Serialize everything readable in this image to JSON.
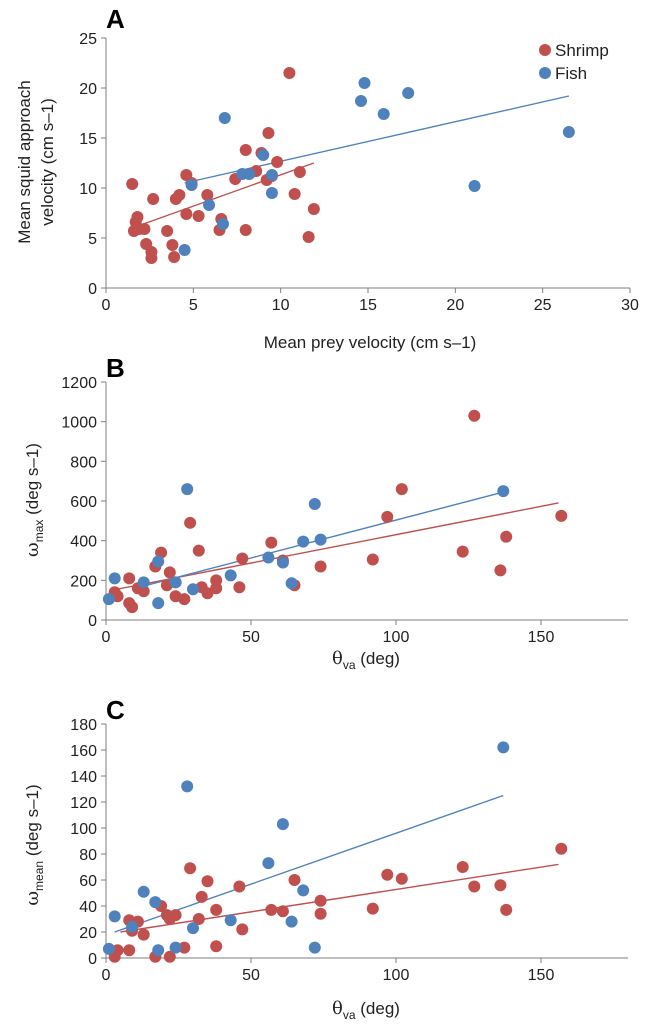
{
  "colors": {
    "shrimp": "#c0504d",
    "fish": "#4f81bd",
    "axis": "#7f7f7f"
  },
  "legend": {
    "shrimp": "Shrimp",
    "fish": "Fish",
    "placement": "top-right"
  },
  "chart_data": [
    {
      "panel": "A",
      "type": "scatter",
      "xlabel": "Mean prey velocity (cm s–1)",
      "ylabel_line1": "Mean squid approach",
      "ylabel_line2": "velocity (cm s–1)",
      "xlim": [
        0,
        30
      ],
      "ylim": [
        0,
        25
      ],
      "xticks": [
        "0",
        "5",
        "10",
        "15",
        "20",
        "25",
        "30"
      ],
      "yticks": [
        "0",
        "5",
        "10",
        "15",
        "20",
        "25"
      ],
      "grid": false,
      "series": [
        {
          "name": "Shrimp",
          "points": [
            [
              1.5,
              10.4
            ],
            [
              1.6,
              5.7
            ],
            [
              1.7,
              6.6
            ],
            [
              1.8,
              7.1
            ],
            [
              1.9,
              5.9
            ],
            [
              2.2,
              5.9
            ],
            [
              2.3,
              4.4
            ],
            [
              2.6,
              3.0
            ],
            [
              2.6,
              3.6
            ],
            [
              2.7,
              8.9
            ],
            [
              3.5,
              5.7
            ],
            [
              3.8,
              4.3
            ],
            [
              3.9,
              3.1
            ],
            [
              4.0,
              8.9
            ],
            [
              4.2,
              9.3
            ],
            [
              4.6,
              11.3
            ],
            [
              4.6,
              7.4
            ],
            [
              4.9,
              10.5
            ],
            [
              5.3,
              7.2
            ],
            [
              5.8,
              9.3
            ],
            [
              6.5,
              5.8
            ],
            [
              6.6,
              6.9
            ],
            [
              7.4,
              10.9
            ],
            [
              8.0,
              13.8
            ],
            [
              8.0,
              5.8
            ],
            [
              8.6,
              11.7
            ],
            [
              8.9,
              13.5
            ],
            [
              9.2,
              10.8
            ],
            [
              9.3,
              15.5
            ],
            [
              9.5,
              11.2
            ],
            [
              9.8,
              12.6
            ],
            [
              10.5,
              21.5
            ],
            [
              10.8,
              9.4
            ],
            [
              11.1,
              11.6
            ],
            [
              11.6,
              5.1
            ],
            [
              11.9,
              7.9
            ]
          ],
          "trend": [
            [
              1.5,
              6.0
            ],
            [
              11.9,
              12.5
            ]
          ]
        },
        {
          "name": "Fish",
          "points": [
            [
              4.5,
              3.8
            ],
            [
              4.9,
              10.3
            ],
            [
              5.9,
              8.3
            ],
            [
              6.7,
              6.4
            ],
            [
              6.8,
              17.0
            ],
            [
              7.8,
              11.4
            ],
            [
              8.2,
              11.4
            ],
            [
              9.0,
              13.3
            ],
            [
              9.5,
              9.5
            ],
            [
              9.5,
              11.3
            ],
            [
              14.6,
              18.7
            ],
            [
              14.8,
              20.5
            ],
            [
              15.9,
              17.4
            ],
            [
              17.3,
              19.5
            ],
            [
              21.1,
              10.2
            ],
            [
              26.5,
              15.6
            ]
          ],
          "trend": [
            [
              4.5,
              10.5
            ],
            [
              26.5,
              19.2
            ]
          ]
        }
      ]
    },
    {
      "panel": "B",
      "type": "scatter",
      "xlabel_symbol": "θ",
      "xlabel_sub": "va",
      "xlabel_rest": " (deg)",
      "ylabel_symbol": "ω",
      "ylabel_sub": "max",
      "ylabel_rest": " (deg s–1)",
      "xlim": [
        0,
        180
      ],
      "ylim": [
        0,
        1200
      ],
      "xticks": [
        "0",
        "50",
        "100",
        "150"
      ],
      "yticks": [
        "0",
        "200",
        "400",
        "600",
        "800",
        "1000",
        "1200"
      ],
      "grid": false,
      "series": [
        {
          "name": "Shrimp",
          "points": [
            [
              3,
              140
            ],
            [
              4,
              120
            ],
            [
              8,
              85
            ],
            [
              8,
              210
            ],
            [
              9,
              65
            ],
            [
              11,
              160
            ],
            [
              13,
              145
            ],
            [
              17,
              270
            ],
            [
              19,
              340
            ],
            [
              21,
              175
            ],
            [
              22,
              240
            ],
            [
              24,
              190
            ],
            [
              24,
              120
            ],
            [
              27,
              105
            ],
            [
              29,
              490
            ],
            [
              32,
              350
            ],
            [
              33,
              165
            ],
            [
              35,
              135
            ],
            [
              38,
              160
            ],
            [
              38,
              200
            ],
            [
              46,
              165
            ],
            [
              47,
              310
            ],
            [
              57,
              390
            ],
            [
              61,
              300
            ],
            [
              65,
              175
            ],
            [
              74,
              270
            ],
            [
              92,
              305
            ],
            [
              97,
              520
            ],
            [
              102,
              660
            ],
            [
              123,
              345
            ],
            [
              127,
              1030
            ],
            [
              136,
              250
            ],
            [
              138,
              420
            ],
            [
              157,
              525
            ]
          ],
          "trend": [
            [
              2,
              150
            ],
            [
              156,
              590
            ]
          ]
        },
        {
          "name": "Fish",
          "points": [
            [
              1,
              105
            ],
            [
              3,
              210
            ],
            [
              13,
              190
            ],
            [
              18,
              85
            ],
            [
              18,
              295
            ],
            [
              24,
              190
            ],
            [
              28,
              660
            ],
            [
              30,
              155
            ],
            [
              43,
              225
            ],
            [
              56,
              315
            ],
            [
              61,
              290
            ],
            [
              64,
              185
            ],
            [
              68,
              395
            ],
            [
              72,
              585
            ],
            [
              74,
              405
            ],
            [
              137,
              650
            ]
          ],
          "trend": [
            [
              10,
              160
            ],
            [
              137,
              645
            ]
          ]
        }
      ]
    },
    {
      "panel": "C",
      "type": "scatter",
      "xlabel_symbol": "θ",
      "xlabel_sub": "va",
      "xlabel_rest": " (deg)",
      "ylabel_symbol": "ω",
      "ylabel_sub": "mean",
      "ylabel_rest": " (deg s–1)",
      "xlim": [
        0,
        180
      ],
      "ylim": [
        0,
        180
      ],
      "xticks": [
        "0",
        "50",
        "100",
        "150"
      ],
      "yticks": [
        "0",
        "20",
        "40",
        "60",
        "80",
        "100",
        "120",
        "140",
        "160",
        "180"
      ],
      "grid": false,
      "series": [
        {
          "name": "Shrimp",
          "points": [
            [
              3,
              1
            ],
            [
              4,
              6
            ],
            [
              8,
              6
            ],
            [
              8,
              29
            ],
            [
              9,
              21
            ],
            [
              11,
              28
            ],
            [
              13,
              18
            ],
            [
              17,
              1
            ],
            [
              19,
              40
            ],
            [
              21,
              33
            ],
            [
              22,
              30
            ],
            [
              22,
              1
            ],
            [
              24,
              33
            ],
            [
              27,
              8
            ],
            [
              29,
              69
            ],
            [
              32,
              30
            ],
            [
              33,
              47
            ],
            [
              35,
              59
            ],
            [
              38,
              37
            ],
            [
              38,
              9
            ],
            [
              46,
              55
            ],
            [
              47,
              22
            ],
            [
              57,
              37
            ],
            [
              61,
              36
            ],
            [
              65,
              60
            ],
            [
              74,
              34
            ],
            [
              74,
              44
            ],
            [
              92,
              38
            ],
            [
              97,
              64
            ],
            [
              102,
              61
            ],
            [
              123,
              70
            ],
            [
              127,
              55
            ],
            [
              136,
              56
            ],
            [
              138,
              37
            ],
            [
              157,
              84
            ]
          ],
          "trend": [
            [
              5,
              20
            ],
            [
              156,
              72
            ]
          ]
        },
        {
          "name": "Fish",
          "points": [
            [
              1,
              7
            ],
            [
              3,
              32
            ],
            [
              9,
              24
            ],
            [
              13,
              51
            ],
            [
              17,
              43
            ],
            [
              18,
              6
            ],
            [
              24,
              8
            ],
            [
              28,
              132
            ],
            [
              30,
              23
            ],
            [
              43,
              29
            ],
            [
              56,
              73
            ],
            [
              61,
              103
            ],
            [
              64,
              28
            ],
            [
              68,
              52
            ],
            [
              72,
              8
            ],
            [
              137,
              162
            ]
          ],
          "trend": [
            [
              3,
              20
            ],
            [
              137,
              125
            ]
          ]
        }
      ]
    }
  ]
}
